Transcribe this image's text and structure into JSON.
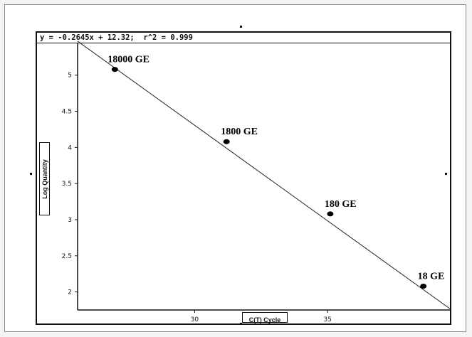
{
  "chart_data": {
    "type": "scatter",
    "equation": "y = -0.2645x + 12.32;  r^2 = 0.999",
    "xlabel": "C(T) Cycle",
    "ylabel": "Log Quantity",
    "xlim": [
      25.6,
      39.6
    ],
    "ylim": [
      1.75,
      5.45
    ],
    "xticks": [
      30,
      35
    ],
    "yticks": [
      2,
      2.5,
      3,
      3.5,
      4,
      4.5,
      5
    ],
    "points": [
      {
        "x": 27.0,
        "y": 5.08,
        "label": "18000 GE"
      },
      {
        "x": 31.2,
        "y": 4.08,
        "label": "1800 GE"
      },
      {
        "x": 35.1,
        "y": 3.08,
        "label": "180 GE"
      },
      {
        "x": 38.6,
        "y": 2.08,
        "label": "18 GE"
      }
    ],
    "fit": {
      "slope": -0.2645,
      "intercept": 12.32
    }
  }
}
